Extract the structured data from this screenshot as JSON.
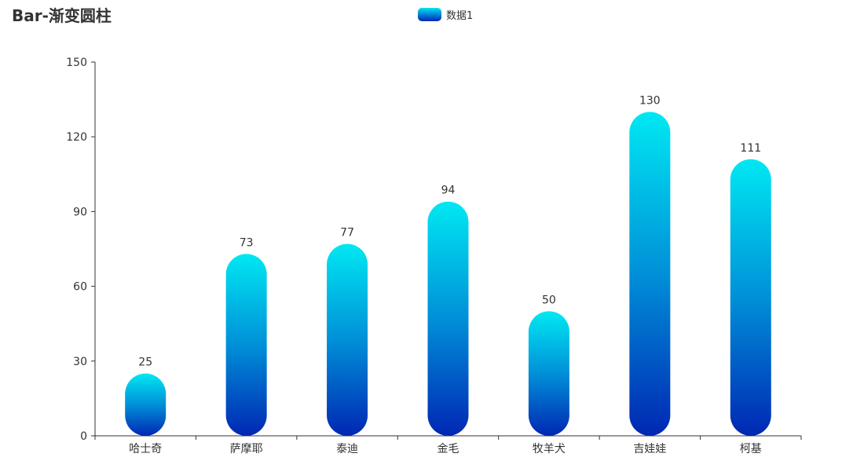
{
  "chart_data": {
    "type": "bar",
    "title": "Bar-渐变圆柱",
    "categories": [
      "哈士奇",
      "萨摩耶",
      "泰迪",
      "金毛",
      "牧羊犬",
      "吉娃娃",
      "柯基"
    ],
    "series": [
      {
        "name": "数据1",
        "values": [
          25,
          73,
          77,
          94,
          50,
          130,
          111
        ]
      }
    ],
    "ylim": [
      0,
      150
    ],
    "yticks": [
      0,
      30,
      60,
      90,
      120,
      150
    ],
    "grid": false,
    "legend_position": "top-center",
    "show_data_labels": true,
    "bar_gradient": {
      "top": "#00e8f2",
      "bottom": "#0027b3"
    }
  },
  "colors": {
    "axis": "#333333",
    "text": "#333333"
  }
}
